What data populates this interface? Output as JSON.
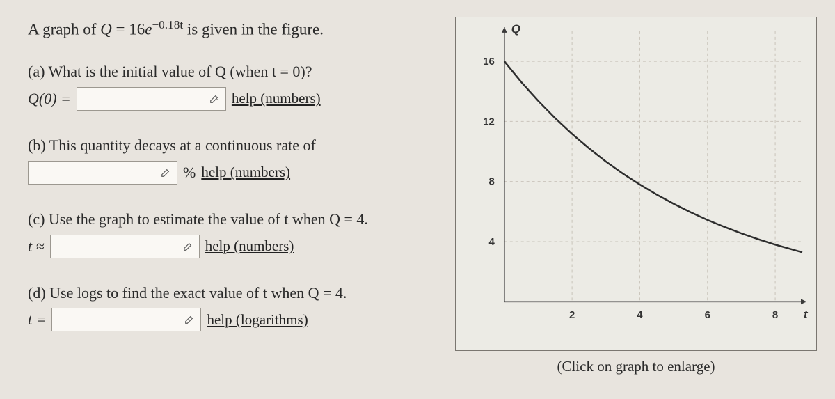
{
  "prompt": {
    "pre": "A graph of ",
    "var": "Q",
    "eq": " = 16",
    "e": "e",
    "exp": "−0.18t",
    "post": " is given in the figure."
  },
  "parts": {
    "a": {
      "text": "(a) What is the initial value of Q (when t = 0)?",
      "label_pre": "Q(0) = ",
      "help": "help (numbers)"
    },
    "b": {
      "text": "(b) This quantity decays at a continuous rate of",
      "suffix": " % ",
      "help": "help (numbers)"
    },
    "c": {
      "text": "(c) Use the graph to estimate the value of t when Q = 4.",
      "label_pre": "t ≈ ",
      "help": "help (numbers)"
    },
    "d": {
      "text": "(d) Use logs to find the exact value of t when Q = 4.",
      "label_pre": "t = ",
      "help": "help (logarithms)"
    }
  },
  "graph": {
    "type": "line",
    "caption": "(Click on graph to enlarge)",
    "axis_labels": {
      "x": "t",
      "y": "Q"
    },
    "xlim": [
      0,
      8.8
    ],
    "ylim": [
      0,
      18
    ],
    "xticks": [
      2,
      4,
      6,
      8
    ],
    "yticks": [
      4,
      8,
      12,
      16
    ],
    "background_color": "#ecebe5",
    "grid_color": "#c9c4ba",
    "axis_color": "#3a3a3a",
    "curve_color": "#2d2d2d",
    "curve_width": 2.5,
    "tick_fontsize": 15,
    "label_fontsize": 17,
    "curve_points": [
      [
        0,
        16
      ],
      [
        0.5,
        14.62
      ],
      [
        1,
        13.37
      ],
      [
        1.5,
        12.22
      ],
      [
        2,
        11.17
      ],
      [
        2.5,
        10.21
      ],
      [
        3,
        9.33
      ],
      [
        3.5,
        8.53
      ],
      [
        4,
        7.8
      ],
      [
        4.5,
        7.13
      ],
      [
        5,
        6.52
      ],
      [
        5.5,
        5.96
      ],
      [
        6,
        5.44
      ],
      [
        6.5,
        4.98
      ],
      [
        7,
        4.55
      ],
      [
        7.5,
        4.16
      ],
      [
        8,
        3.8
      ],
      [
        8.5,
        3.48
      ],
      [
        8.8,
        3.29
      ]
    ]
  }
}
